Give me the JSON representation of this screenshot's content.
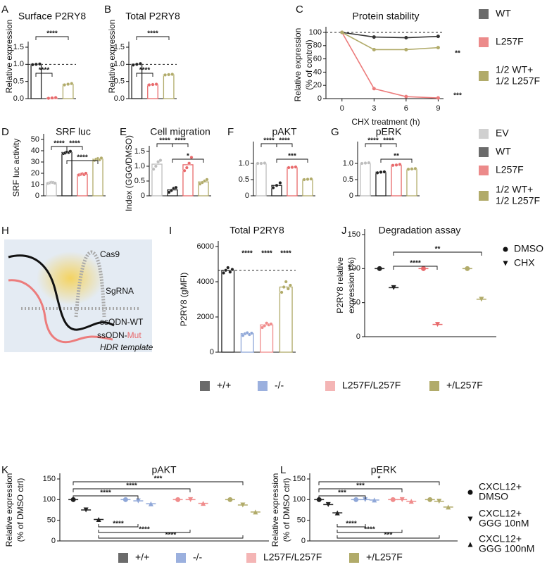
{
  "chart_data": [
    {
      "panel": "A",
      "type": "bar",
      "title": "Surface P2RY8",
      "ylabel": "Relative expression",
      "values": [
        1.0,
        0.02,
        0.42
      ],
      "points": [
        [
          0.99,
          1.0,
          1.01
        ],
        [
          0.01,
          0.02,
          0.03
        ],
        [
          0.4,
          0.42,
          0.44
        ]
      ],
      "colors": [
        "#222222",
        "#e8696b",
        "#b1ab6a"
      ],
      "ylim": [
        0,
        1.5
      ],
      "yticks": [
        {
          "value": 0,
          "label": "0.0"
        },
        0.5,
        {
          "value": 1,
          "label": "1.0"
        },
        1.5
      ],
      "refline": 1,
      "annotations": [
        "****",
        "****"
      ]
    },
    {
      "panel": "B",
      "type": "bar",
      "title": "Total P2RY8",
      "ylabel": "Relative expression",
      "values": [
        1.0,
        0.41,
        0.7
      ],
      "points": [
        [
          0.98,
          1.0,
          1.02
        ],
        [
          0.4,
          0.41,
          0.42
        ],
        [
          0.69,
          0.7,
          0.71
        ]
      ],
      "colors": [
        "#222222",
        "#e8696b",
        "#b1ab6a"
      ],
      "ylim": [
        0,
        1.5
      ],
      "yticks": [
        {
          "value": 0,
          "label": "0.0"
        },
        0.5,
        {
          "value": 1,
          "label": "1.0"
        },
        1.5
      ],
      "refline": 1,
      "annotations": [
        "****",
        "****"
      ]
    },
    {
      "panel": "C",
      "type": "line",
      "title": "Protein stability",
      "ylabel": [
        "Relative expression",
        "(% of control)"
      ],
      "xlabel": "CHX treatment (h)",
      "x": [
        0,
        3,
        6,
        9
      ],
      "series": [
        {
          "color": "#333333",
          "values": [
            100,
            93,
            92,
            94
          ]
        },
        {
          "color": "#ec7c7c",
          "values": [
            100,
            15,
            3,
            1
          ]
        },
        {
          "color": "#b1ab6a",
          "values": [
            100,
            74,
            74,
            77
          ]
        }
      ],
      "xlim": [
        -1.5,
        9.5
      ],
      "xticks": [
        0,
        3,
        6,
        9
      ],
      "ylim": [
        0,
        100
      ],
      "yticks": [
        0,
        20,
        40,
        60,
        80,
        100
      ],
      "refline": 100,
      "annotations": [
        "**",
        "***"
      ]
    },
    {
      "panel": "D",
      "type": "bar",
      "title": "SRF luc",
      "ylabel": "SRF luc activity",
      "values": [
        11.5,
        38.5,
        19,
        32.5
      ],
      "points": [
        [
          11,
          11.5,
          12,
          11.8,
          11.2
        ],
        [
          37.5,
          38,
          39,
          38.5,
          39.5
        ],
        [
          18.5,
          19,
          19.5,
          18.8,
          20
        ],
        [
          31.5,
          32.5,
          33,
          32,
          33.5
        ]
      ],
      "colors": [
        "#bdbdbd",
        "#222222",
        "#e8696b",
        "#b1ab6a"
      ],
      "ylim": [
        0,
        50
      ],
      "yticks": [
        0,
        10,
        20,
        30,
        40,
        50
      ],
      "annotations": [
        "****",
        "****",
        "****"
      ]
    },
    {
      "panel": "E",
      "type": "bar",
      "title": "Cell migration",
      "ylabel": "Index (GGG/DMSO)",
      "values": [
        1.07,
        0.2,
        1.05,
        0.47
      ],
      "points": [
        [
          0.9,
          1.0,
          1.15,
          1.2
        ],
        [
          0.12,
          0.18,
          0.25,
          0.28
        ],
        [
          0.85,
          0.95,
          1.1,
          1.3
        ],
        [
          0.4,
          0.45,
          0.5,
          0.55
        ]
      ],
      "colors": [
        "#bdbdbd",
        "#222222",
        "#e8696b",
        "#b1ab6a"
      ],
      "ylim": [
        0,
        1.5
      ],
      "yticks": [
        0,
        0.5,
        {
          "value": 1,
          "label": "1.0"
        },
        1.5
      ],
      "annotations": [
        "****",
        "****",
        "*"
      ]
    },
    {
      "panel": "F",
      "type": "bar",
      "title": "pAKT",
      "values": [
        1.0,
        0.32,
        0.88,
        0.51
      ],
      "points": [
        [
          1.0,
          1.0,
          1.01
        ],
        [
          0.25,
          0.32,
          0.4
        ],
        [
          0.87,
          0.88,
          0.89
        ],
        [
          0.5,
          0.51,
          0.52
        ]
      ],
      "colors": [
        "#bdbdbd",
        "#222222",
        "#e8696b",
        "#b1ab6a"
      ],
      "ylim": [
        0,
        1.5
      ],
      "yticks": [
        0,
        0.5,
        {
          "value": 1,
          "label": "1.0"
        }
      ],
      "annotations": [
        "****",
        "****",
        "***"
      ]
    },
    {
      "panel": "G",
      "type": "bar",
      "title": "pERK",
      "values": [
        1.0,
        0.73,
        0.95,
        0.82
      ],
      "points": [
        [
          1.0,
          1.01,
          1.02
        ],
        [
          0.71,
          0.73,
          0.74
        ],
        [
          0.94,
          0.95,
          0.97
        ],
        [
          0.82,
          0.83,
          0.84
        ]
      ],
      "colors": [
        "#bdbdbd",
        "#222222",
        "#e8696b",
        "#b1ab6a"
      ],
      "ylim": [
        0,
        1.5
      ],
      "yticks": [
        0,
        0.5,
        {
          "value": 1,
          "label": "1.0"
        }
      ],
      "annotations": [
        "****",
        "****",
        "**"
      ]
    },
    {
      "panel": "I",
      "type": "bar",
      "title": "Total P2RY8",
      "ylabel": "P2RY8 (gMFI)",
      "values": [
        4650,
        1050,
        1550,
        3700
      ],
      "points": [
        [
          4500,
          4650,
          4800,
          4550,
          4700
        ],
        [
          950,
          1050,
          1100,
          1000,
          1080
        ],
        [
          1400,
          1500,
          1650,
          1550,
          1600
        ],
        [
          3400,
          3700,
          4000,
          3600,
          3800
        ]
      ],
      "colors": [
        "#222222",
        "#8fa7d8",
        "#f08c8c",
        "#b1ab6a"
      ],
      "ylim": [
        0,
        6000
      ],
      "yticks": [
        0,
        2000,
        4000,
        6000
      ],
      "refline": 4650,
      "annotations": [
        "****",
        "****",
        "****"
      ]
    },
    {
      "panel": "J",
      "type": "dot",
      "title": "Degradation assay",
      "ylabel": [
        "P2RY8 relative",
        "expression (%)"
      ],
      "series": [
        {
          "name": "DMSO",
          "marker": "circle",
          "values": [
            100,
            100,
            100
          ]
        },
        {
          "name": "CHX",
          "marker": "triangle-down",
          "values": [
            72,
            18,
            55
          ]
        }
      ],
      "colors": [
        "#222222",
        "#e8696b",
        "#b1ab6a"
      ],
      "ylim": [
        0,
        150
      ],
      "yticks": [
        0,
        50,
        100,
        150
      ],
      "annotations": [
        "****",
        "**"
      ]
    },
    {
      "panel": "K",
      "type": "dot",
      "title": "pAKT",
      "ylabel": [
        "Relative expression",
        "(% of DMSO ctrl)"
      ],
      "series": [
        {
          "name": [
            "CXCL12+",
            "DMSO"
          ],
          "marker": "circle",
          "values": [
            100,
            100,
            100,
            100
          ]
        },
        {
          "name": [
            "CXCL12+",
            "GGG 10nM"
          ],
          "marker": "triangle-down",
          "values": [
            75,
            97,
            100,
            87
          ]
        },
        {
          "name": [
            "CXCL12+",
            "GGG 100nM"
          ],
          "marker": "triangle-up",
          "values": [
            52,
            90,
            91,
            70
          ]
        }
      ],
      "colors": [
        "#222222",
        "#8fa7d8",
        "#f08c8c",
        "#b1ab6a"
      ],
      "ylim": [
        0,
        150
      ],
      "yticks": [
        0,
        50,
        100,
        150
      ],
      "annotations": [
        "***",
        "****",
        "****",
        "****",
        "****",
        "****"
      ]
    },
    {
      "panel": "L",
      "type": "dot",
      "title": "pERK",
      "ylabel": [
        "Relative expression",
        "(% of DMSO ctrl)"
      ],
      "series": [
        {
          "marker": "circle",
          "values": [
            100,
            100,
            100,
            100
          ]
        },
        {
          "marker": "triangle-down",
          "values": [
            88,
            100,
            100,
            96
          ]
        },
        {
          "marker": "triangle-up",
          "values": [
            68,
            99,
            96,
            82
          ]
        }
      ],
      "colors": [
        "#222222",
        "#8fa7d8",
        "#f08c8c",
        "#b1ab6a"
      ],
      "ylim": [
        0,
        150
      ],
      "yticks": [
        0,
        50,
        100,
        150
      ],
      "annotations": [
        "*",
        "***",
        "***",
        "****",
        "****",
        "***"
      ]
    }
  ],
  "legends": [
    {
      "items": [
        {
          "name": "WT",
          "color": "#6b6b6b"
        },
        {
          "name": "L257F",
          "color": "#ec8a8a"
        },
        {
          "name": [
            "1/2 WT+",
            "1/2 L257F"
          ],
          "color": "#b1ab6a"
        }
      ]
    },
    {
      "items": [
        {
          "name": "EV",
          "color": "#d0d0d0"
        },
        {
          "name": "WT",
          "color": "#6b6b6b"
        },
        {
          "name": "L257F",
          "color": "#ec8a8a"
        },
        {
          "name": [
            "1/2 WT+",
            "1/2 L257F"
          ],
          "color": "#b1ab6a"
        }
      ]
    },
    {
      "items": [
        {
          "name": "+/+",
          "color": "#6b6b6b"
        },
        {
          "name": "-/-",
          "color": "#9bb0de"
        },
        {
          "name": "L257F/L257F",
          "color": "#f4b5b5"
        },
        {
          "name": "+/L257F",
          "color": "#b1ab6a"
        }
      ]
    },
    {
      "items": [
        {
          "name": "+/+",
          "color": "#6b6b6b"
        },
        {
          "name": "-/-",
          "color": "#9bb0de"
        },
        {
          "name": "L257F/L257F",
          "color": "#f4b5b5"
        },
        {
          "name": "+/L257F",
          "color": "#b1ab6a"
        }
      ]
    }
  ],
  "diagram": {
    "panel": "H",
    "cas9": "Cas9",
    "sgrna": "SgRNA",
    "wt": "ssODN-WT",
    "mut_prefix": "ssODN-",
    "mut": "Mut",
    "hdr": "HDR template"
  }
}
